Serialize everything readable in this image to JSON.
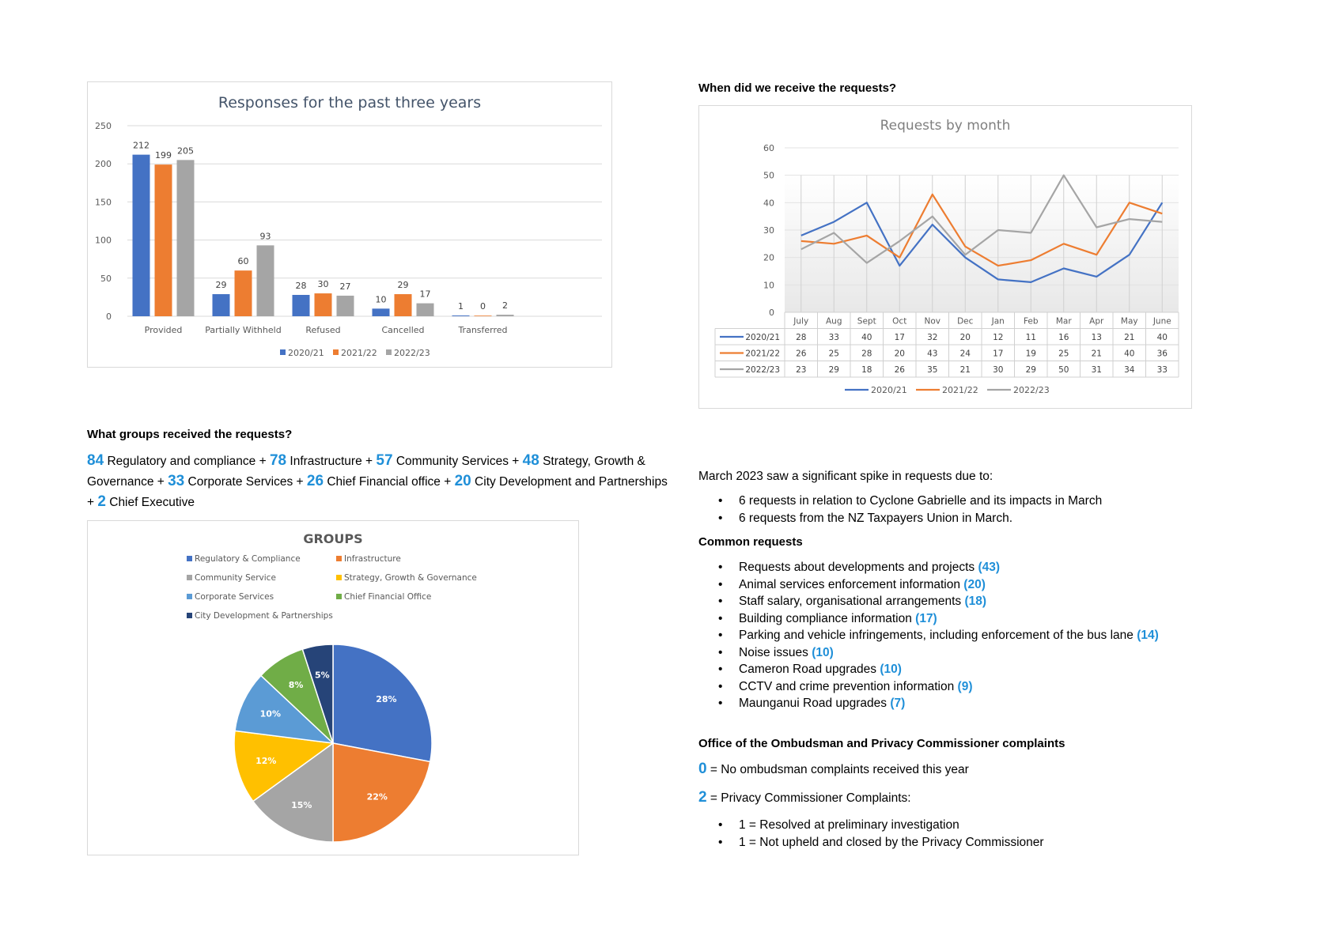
{
  "bar_panel": {
    "chart_data": {
      "type": "bar",
      "title": "Responses for the past three years",
      "categories": [
        "Provided",
        "Partially Withheld",
        "Refused",
        "Cancelled",
        "Transferred"
      ],
      "series": [
        {
          "name": "2020/21",
          "values": [
            212,
            29,
            28,
            10,
            1
          ],
          "color": "#4472c4"
        },
        {
          "name": "2021/22",
          "values": [
            199,
            60,
            30,
            29,
            0
          ],
          "color": "#ed7d31"
        },
        {
          "name": "2022/23",
          "values": [
            205,
            93,
            27,
            17,
            2
          ],
          "color": "#a5a5a5"
        }
      ],
      "ylim": [
        0,
        250
      ],
      "yticks": [
        "0",
        "50",
        "100",
        "150",
        "200",
        "250"
      ],
      "grid": true,
      "legend": "bottom"
    }
  },
  "month_heading": "When did we receive the requests?",
  "line_panel": {
    "chart_data": {
      "type": "line",
      "title": "Requests by month",
      "categories": [
        "July",
        "Aug",
        "Sept",
        "Oct",
        "Nov",
        "Dec",
        "Jan",
        "Feb",
        "Mar",
        "Apr",
        "May",
        "June"
      ],
      "series": [
        {
          "name": "2020/21",
          "values": [
            28,
            33,
            40,
            17,
            32,
            20,
            12,
            11,
            16,
            13,
            21,
            40
          ],
          "color": "#4472c4"
        },
        {
          "name": "2021/22",
          "values": [
            26,
            25,
            28,
            20,
            43,
            24,
            17,
            19,
            25,
            21,
            40,
            36
          ],
          "color": "#ed7d31"
        },
        {
          "name": "2022/23",
          "values": [
            23,
            29,
            18,
            26,
            35,
            21,
            30,
            29,
            50,
            31,
            34,
            33
          ],
          "color": "#a5a5a5"
        }
      ],
      "ylim": [
        0,
        60
      ],
      "yticks": [
        "0",
        "10",
        "20",
        "30",
        "40",
        "50",
        "60"
      ],
      "grid": true,
      "data_table": true,
      "legend": "bottom"
    }
  },
  "groups_heading": "What groups received the requests?",
  "groups_summary": [
    {
      "num": "84",
      "text": " Regulatory and compliance + "
    },
    {
      "num": "78",
      "text": " Infrastructure + "
    },
    {
      "num": "57",
      "text": " Community Services + "
    },
    {
      "num": "48",
      "text": " Strategy, Growth & Governance + "
    },
    {
      "num": "33",
      "text": " Corporate Services + "
    },
    {
      "num": "26",
      "text": " Chief Financial office + "
    },
    {
      "num": "20",
      "text": " City Development and Partnerships + "
    },
    {
      "num": "2",
      "text": " Chief Executive"
    }
  ],
  "pie_panel": {
    "chart_data": {
      "type": "pie",
      "title": "GROUPS",
      "slices": [
        {
          "name": "Regulatory & Compliance",
          "percent": 28,
          "label": "28%",
          "color": "#4472c4"
        },
        {
          "name": "Infrastructure",
          "percent": 22,
          "label": "22%",
          "color": "#ed7d31"
        },
        {
          "name": "Community Service",
          "percent": 15,
          "label": "15%",
          "color": "#a5a5a5"
        },
        {
          "name": "Strategy, Growth & Governance",
          "percent": 12,
          "label": "12%",
          "color": "#ffc000"
        },
        {
          "name": "Corporate Services",
          "percent": 10,
          "label": "10%",
          "color": "#5b9bd5"
        },
        {
          "name": "Chief Financial Office",
          "percent": 8,
          "label": "8%",
          "color": "#70ad47"
        },
        {
          "name": "City Development & Partnerships",
          "percent": 5,
          "label": "5%",
          "color": "#264478"
        }
      ],
      "legend": "top"
    }
  },
  "spike": {
    "intro": "March 2023 saw a significant spike in requests due to:",
    "items": [
      "6 requests in relation to Cyclone Gabrielle and its impacts in March",
      "6 requests from the NZ Taxpayers Union in March."
    ]
  },
  "common": {
    "heading": "Common requests",
    "items": [
      {
        "text": "Requests about developments and projects ",
        "count": "(43)"
      },
      {
        "text": "Animal services enforcement information ",
        "count": "(20)"
      },
      {
        "text": "Staff salary, organisational arrangements ",
        "count": "(18)"
      },
      {
        "text": "Building compliance information ",
        "count": "(17)"
      },
      {
        "text": "Parking and vehicle infringements, including enforcement of the bus lane ",
        "count": "(14)"
      },
      {
        "text": "Noise issues ",
        "count": "(10)"
      },
      {
        "text": "Cameron Road upgrades ",
        "count": "(10)"
      },
      {
        "text": "CCTV and crime prevention information ",
        "count": "(9)"
      },
      {
        "text": "Maunganui Road upgrades ",
        "count": "(7)"
      }
    ]
  },
  "ombudsman": {
    "heading": "Office of the Ombudsman and Privacy Commissioner complaints",
    "ombudsman_num": "0",
    "ombudsman_text": " = No ombudsman complaints received this year",
    "privacy_num": "2",
    "privacy_text": " = Privacy Commissioner Complaints:",
    "items": [
      "1 = Resolved at preliminary investigation",
      "1 = Not upheld and closed by the Privacy Commissioner"
    ]
  }
}
